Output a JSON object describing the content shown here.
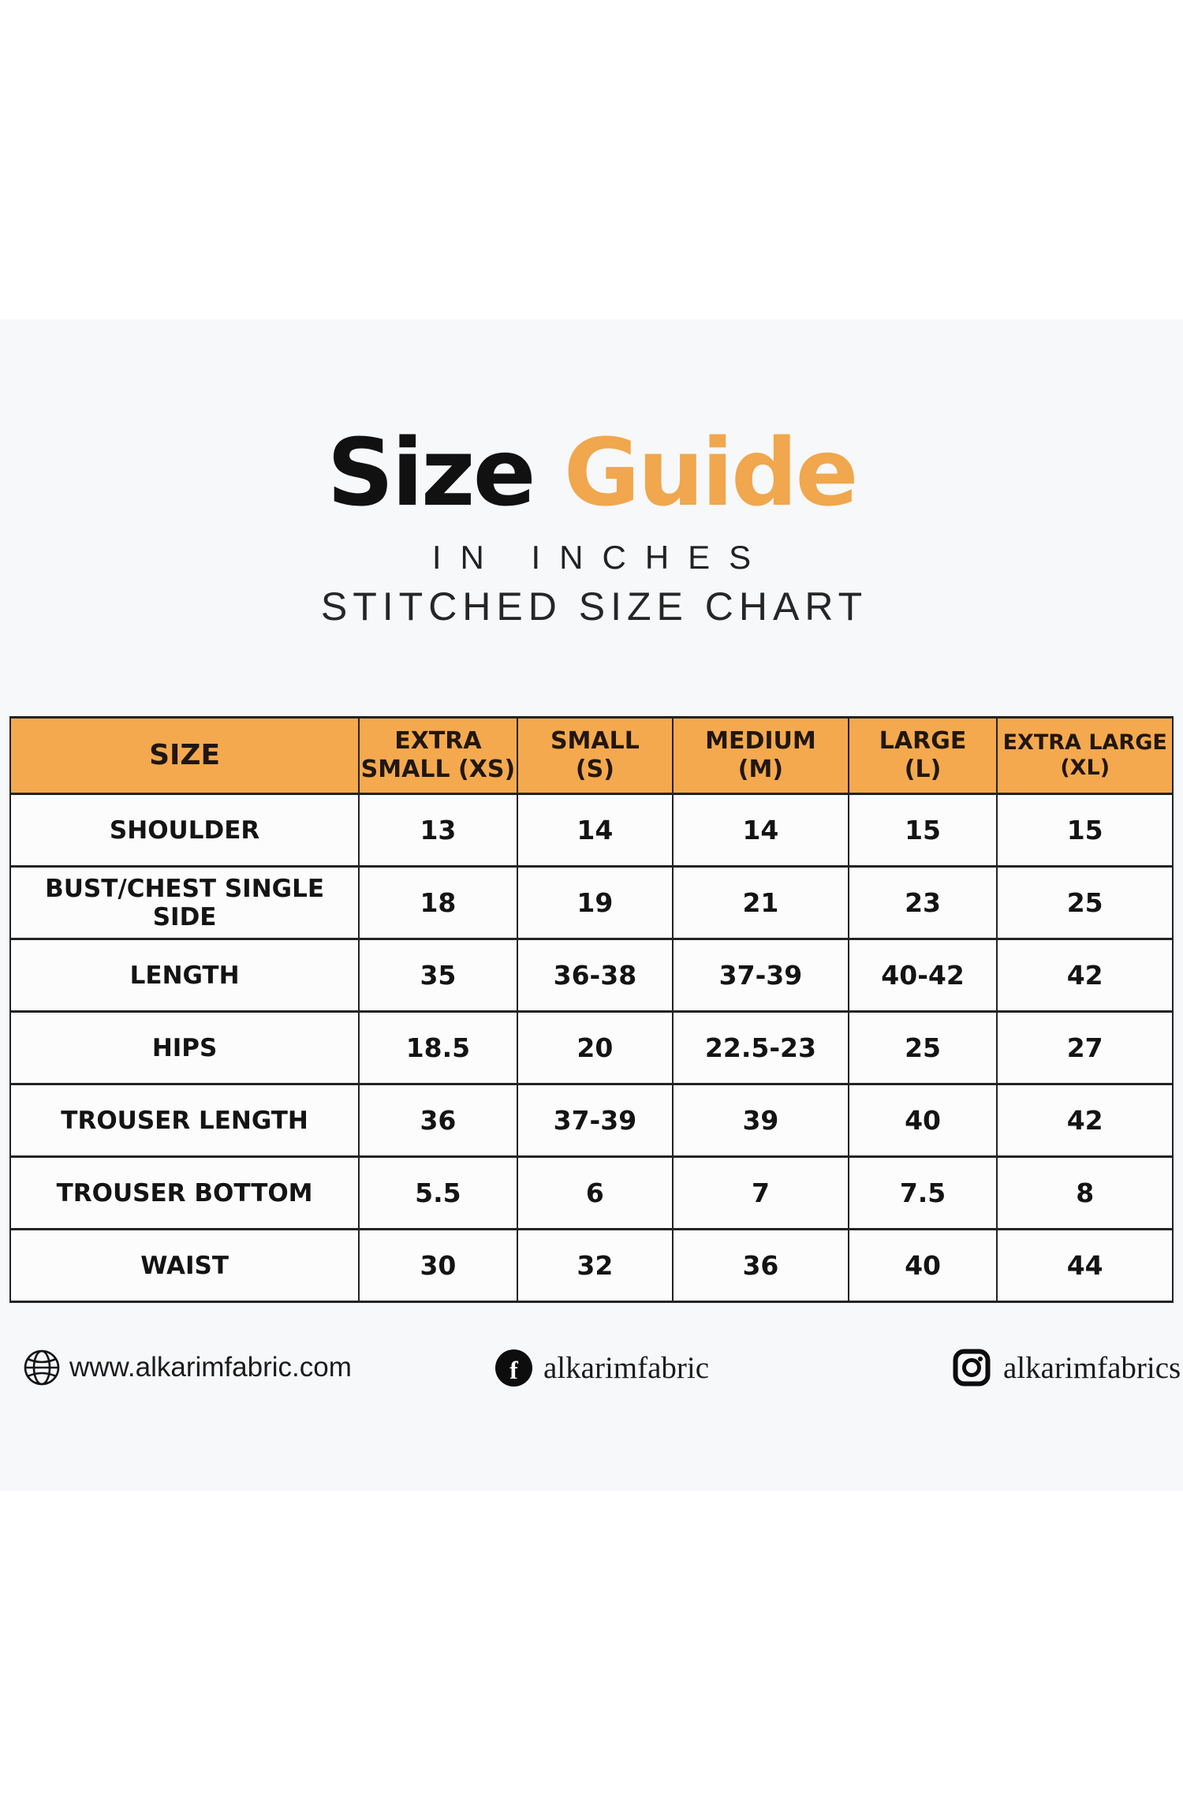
{
  "page": {
    "title_black": "Size",
    "title_orange": "Guide",
    "subtitle_units": "IN INCHES",
    "subtitle_chart": "STITCHED SIZE CHART"
  },
  "colors": {
    "accent_orange_title": "#f0a74d",
    "accent_orange_header": "#f5a94e",
    "band_background": "#f7f8fa",
    "table_border": "#232323",
    "text_dark": "#161616"
  },
  "table": {
    "columns": [
      "SIZE",
      "EXTRA\nSMALL (XS)",
      "SMALL\n(S)",
      "MEDIUM\n(M)",
      "LARGE\n(L)",
      "EXTRA LARGE\n(XL)"
    ],
    "rows": [
      {
        "label": "SHOULDER",
        "values": [
          "13",
          "14",
          "14",
          "15",
          "15"
        ]
      },
      {
        "label": "BUST/CHEST SINGLE SIDE",
        "values": [
          "18",
          "19",
          "21",
          "23",
          "25"
        ]
      },
      {
        "label": "LENGTH",
        "values": [
          "35",
          "36-38",
          "37-39",
          "40-42",
          "42"
        ]
      },
      {
        "label": "HIPS",
        "values": [
          "18.5",
          "20",
          "22.5-23",
          "25",
          "27"
        ]
      },
      {
        "label": "TROUSER LENGTH",
        "values": [
          "36",
          "37-39",
          "39",
          "40",
          "42"
        ]
      },
      {
        "label": "TROUSER BOTTOM",
        "values": [
          "5.5",
          "6",
          "7",
          "7.5",
          "8"
        ]
      },
      {
        "label": "WAIST",
        "values": [
          "30",
          "32",
          "36",
          "40",
          "44"
        ]
      }
    ]
  },
  "footer": {
    "items": [
      {
        "icon": "globe-icon",
        "text": "www.alkarimfabric.com"
      },
      {
        "icon": "facebook-icon",
        "text": "alkarimfabric"
      },
      {
        "icon": "instagram-icon",
        "text": "alkarimfabrics"
      }
    ]
  }
}
